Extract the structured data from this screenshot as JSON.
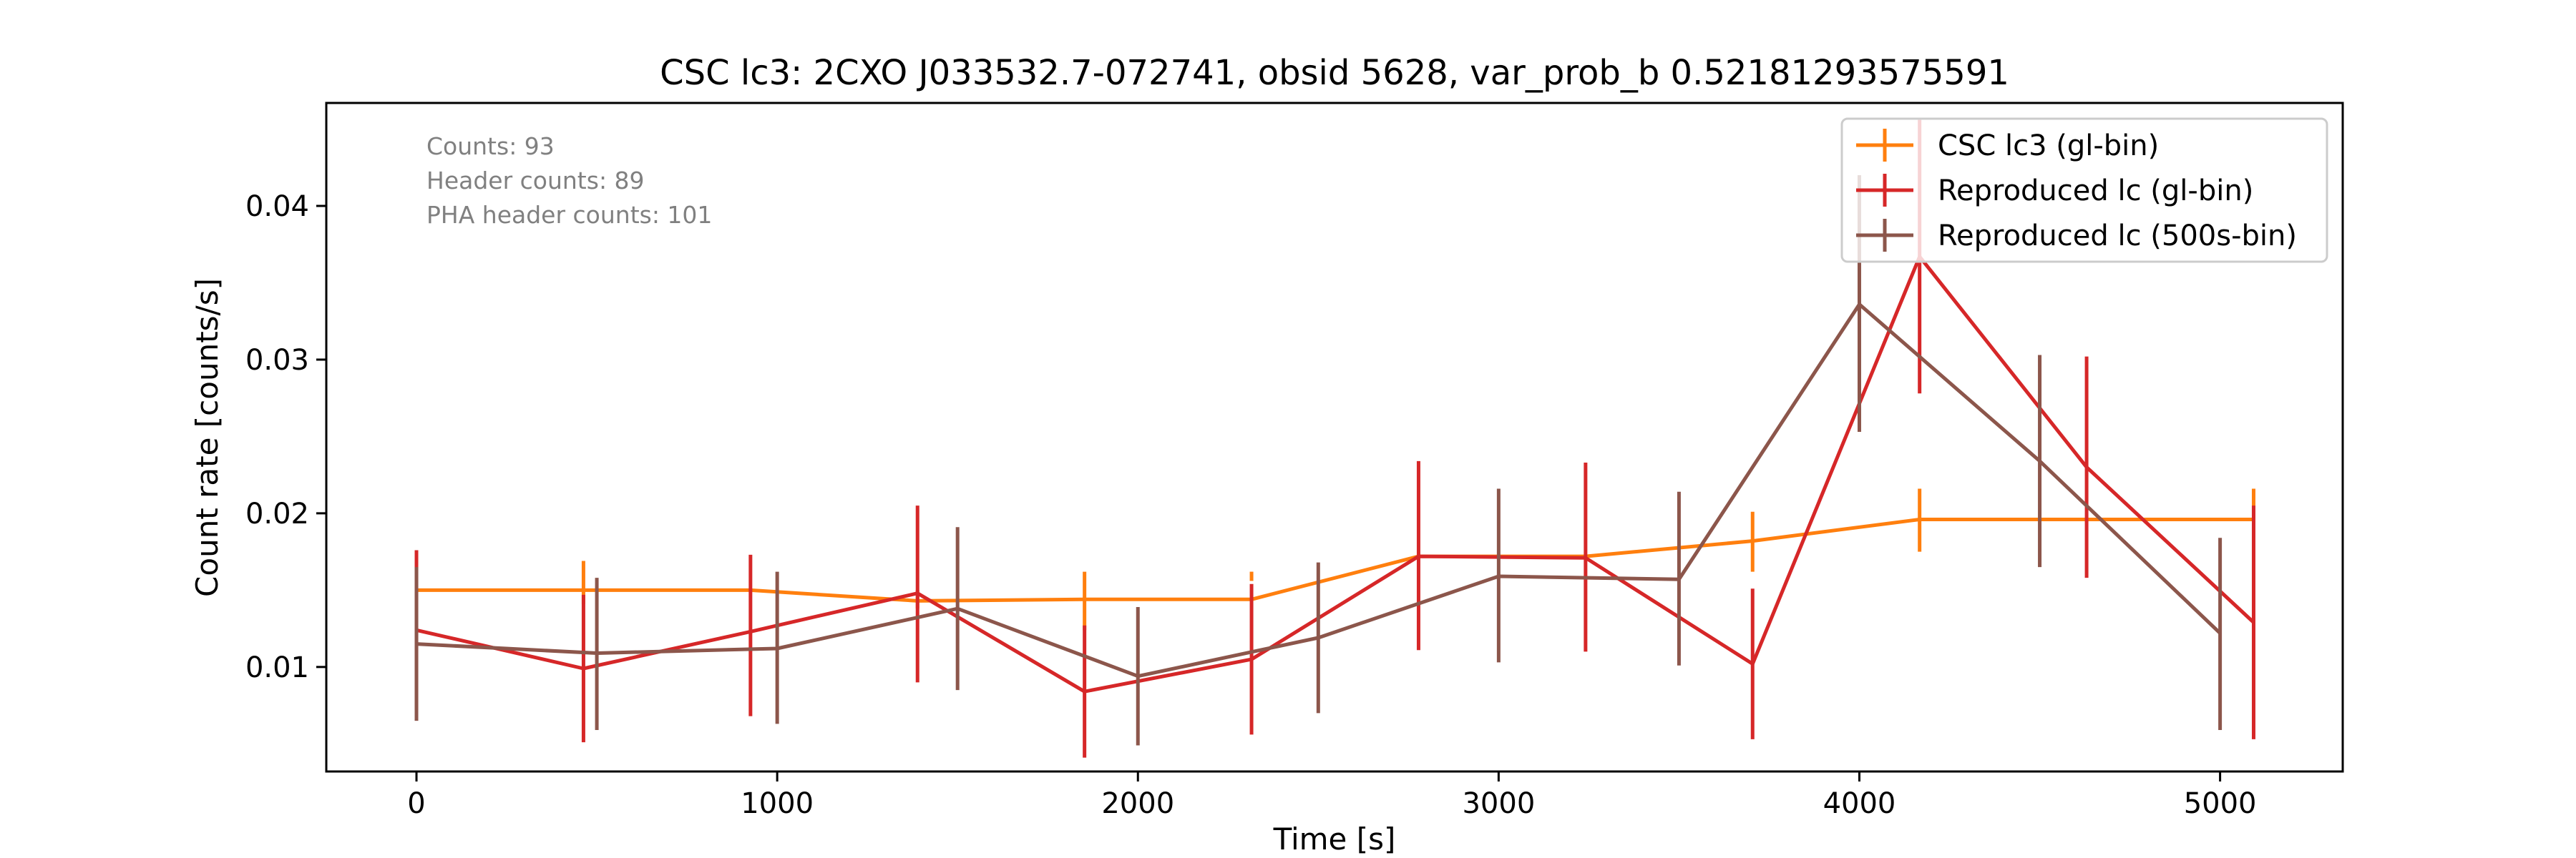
{
  "chart_data": {
    "type": "line",
    "title": "CSC lc3: 2CXO J033532.7-072741, obsid 5628, var_prob_b 0.52181293575591",
    "xlabel": "Time [s]",
    "ylabel": "Count rate [counts/s]",
    "xlim": [
      -250,
      5340
    ],
    "ylim": [
      0.0032,
      0.0467
    ],
    "xticks": [
      0,
      1000,
      2000,
      3000,
      4000,
      5000
    ],
    "yticks": [
      0.01,
      0.02,
      0.03,
      0.04
    ],
    "ytick_labels": [
      "0.01",
      "0.02",
      "0.03",
      "0.04"
    ],
    "grid": false,
    "legend_position": "top-right",
    "annotations": [
      "Counts: 93",
      "Header counts: 89",
      "PHA header counts: 101"
    ],
    "series": [
      {
        "name": "CSC lc3 (gl-bin)",
        "color": "#ff7f0e",
        "x": [
          0,
          463,
          926,
          1389,
          1852,
          2315,
          2778,
          3241,
          3704,
          4167,
          4630,
          5093
        ],
        "y": [
          0.015,
          0.015,
          0.015,
          0.0143,
          0.0144,
          0.0144,
          0.0172,
          0.0172,
          0.0182,
          0.0196,
          0.0196,
          0.0196
        ],
        "yerr_low": [
          0.015,
          0.0141,
          0.015,
          0.0138,
          0.0124,
          0.0156,
          0.0172,
          0.0172,
          0.0162,
          0.0175,
          0.0196,
          0.0196
        ],
        "yerr_high": [
          0.015,
          0.0169,
          0.015,
          0.015,
          0.0162,
          0.0162,
          0.0172,
          0.0172,
          0.0201,
          0.0216,
          0.0196,
          0.0216
        ]
      },
      {
        "name": "Reproduced lc (gl-bin)",
        "color": "#d62728",
        "x": [
          0,
          463,
          926,
          1389,
          1852,
          2315,
          2778,
          3241,
          3704,
          4167,
          4630,
          5093
        ],
        "y": [
          0.0124,
          0.0099,
          0.0123,
          0.0148,
          0.0084,
          0.0105,
          0.0172,
          0.0171,
          0.0102,
          0.0367,
          0.023,
          0.0129
        ],
        "yerr_low": [
          0.0072,
          0.0051,
          0.0068,
          0.009,
          0.0041,
          0.0056,
          0.0111,
          0.011,
          0.0053,
          0.0278,
          0.0158,
          0.0053
        ],
        "yerr_high": [
          0.0176,
          0.0147,
          0.0173,
          0.0205,
          0.0127,
          0.0154,
          0.0234,
          0.0233,
          0.0151,
          0.0456,
          0.0302,
          0.0205
        ]
      },
      {
        "name": "Reproduced lc (500s-bin)",
        "color": "#8c564b",
        "x": [
          0,
          500,
          1000,
          1500,
          2000,
          2500,
          3000,
          3500,
          4000,
          4500,
          5000
        ],
        "y": [
          0.0115,
          0.0109,
          0.0112,
          0.0138,
          0.0094,
          0.0119,
          0.0159,
          0.0157,
          0.0336,
          0.0234,
          0.0122
        ],
        "yerr_low": [
          0.0065,
          0.0059,
          0.0063,
          0.0085,
          0.0049,
          0.007,
          0.0103,
          0.0101,
          0.0253,
          0.0165,
          0.0059
        ],
        "yerr_high": [
          0.0165,
          0.0158,
          0.0162,
          0.0191,
          0.0139,
          0.0168,
          0.0216,
          0.0214,
          0.042,
          0.0303,
          0.0184
        ]
      }
    ]
  }
}
